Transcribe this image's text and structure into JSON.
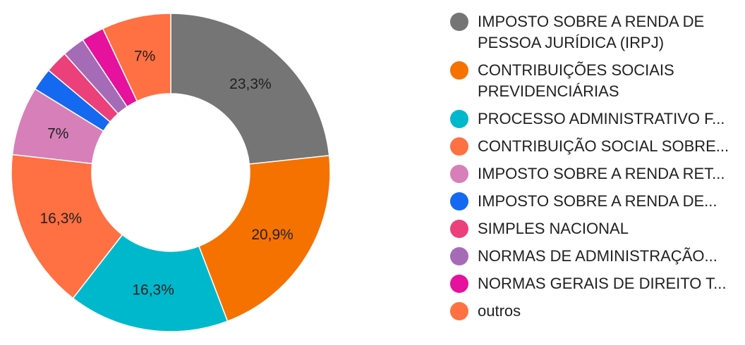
{
  "chart_data": {
    "type": "pie",
    "donut": true,
    "title": "",
    "legend_position": "right",
    "slices": [
      {
        "label": "IMPOSTO SOBRE A RENDA DE PESSOA JURÍDICA (IRPJ)",
        "value": 23.3,
        "display": "23,3%",
        "color": "#757575",
        "truncated": false
      },
      {
        "label": "CONTRIBUIÇÕES SOCIAIS PREVIDENCIÁRIAS",
        "value": 20.9,
        "display": "20,9%",
        "color": "#f57200",
        "truncated": false
      },
      {
        "label": "PROCESSO ADMINISTRATIVO F...",
        "value": 16.3,
        "display": "16,3%",
        "color": "#00b8cc",
        "truncated": true
      },
      {
        "label": "CONTRIBUIÇÃO SOCIAL SOBRE...",
        "value": 16.3,
        "display": "16,3%",
        "color": "#ff7043",
        "truncated": true
      },
      {
        "label": "IMPOSTO SOBRE A RENDA RET...",
        "value": 7.0,
        "display": "7%",
        "color": "#d77fb9",
        "truncated": true
      },
      {
        "label": "IMPOSTO SOBRE A RENDA DE...",
        "value": 2.3,
        "display": "",
        "color": "#1569f0",
        "truncated": true
      },
      {
        "label": "SIMPLES NACIONAL",
        "value": 2.3,
        "display": "",
        "color": "#ec407a",
        "truncated": false
      },
      {
        "label": "NORMAS DE ADMINISTRAÇÃO...",
        "value": 2.3,
        "display": "",
        "color": "#a66bb7",
        "truncated": true
      },
      {
        "label": "NORMAS GERAIS DE DIREITO T...",
        "value": 2.3,
        "display": "",
        "color": "#e6119c",
        "truncated": true
      },
      {
        "label": "outros",
        "value": 7.0,
        "display": "7%",
        "color": "#ff7043",
        "truncated": false
      }
    ]
  }
}
